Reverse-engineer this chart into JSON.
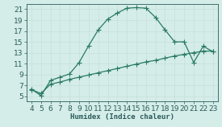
{
  "xlabel": "Humidex (Indice chaleur)",
  "ylabel": "",
  "x_ticks": [
    4,
    5,
    6,
    7,
    8,
    9,
    10,
    11,
    12,
    13,
    14,
    15,
    16,
    17,
    18,
    19,
    20,
    21,
    22,
    23
  ],
  "xlim": [
    3.5,
    23.5
  ],
  "ylim": [
    4.0,
    22.0
  ],
  "y_ticks": [
    5,
    7,
    9,
    11,
    13,
    15,
    17,
    19,
    21
  ],
  "line1_x": [
    4,
    5,
    6,
    7,
    8,
    9,
    10,
    11,
    12,
    13,
    14,
    15,
    16,
    17,
    18,
    19,
    20,
    21,
    22,
    23
  ],
  "line1_y": [
    6.3,
    5.1,
    7.9,
    8.5,
    9.1,
    11.2,
    14.3,
    17.2,
    19.2,
    20.3,
    21.2,
    21.3,
    21.2,
    19.5,
    17.2,
    15.0,
    15.0,
    11.2,
    14.2,
    13.2
  ],
  "line2_x": [
    4,
    5,
    6,
    7,
    8,
    9,
    10,
    11,
    12,
    13,
    14,
    15,
    16,
    17,
    18,
    19,
    20,
    21,
    22,
    23
  ],
  "line2_y": [
    6.2,
    5.5,
    7.2,
    7.6,
    8.1,
    8.5,
    8.9,
    9.3,
    9.7,
    10.1,
    10.5,
    10.9,
    11.3,
    11.6,
    12.0,
    12.4,
    12.7,
    13.0,
    13.3,
    13.3
  ],
  "line_color": "#2a7a62",
  "bg_color": "#d4ede8",
  "grid_color_major": "#c8e0db",
  "grid_color_minor": "#e0f0ec",
  "text_color": "#2a5a5a",
  "font_size": 6.5,
  "marker_size": 2.5,
  "line_width": 0.9
}
